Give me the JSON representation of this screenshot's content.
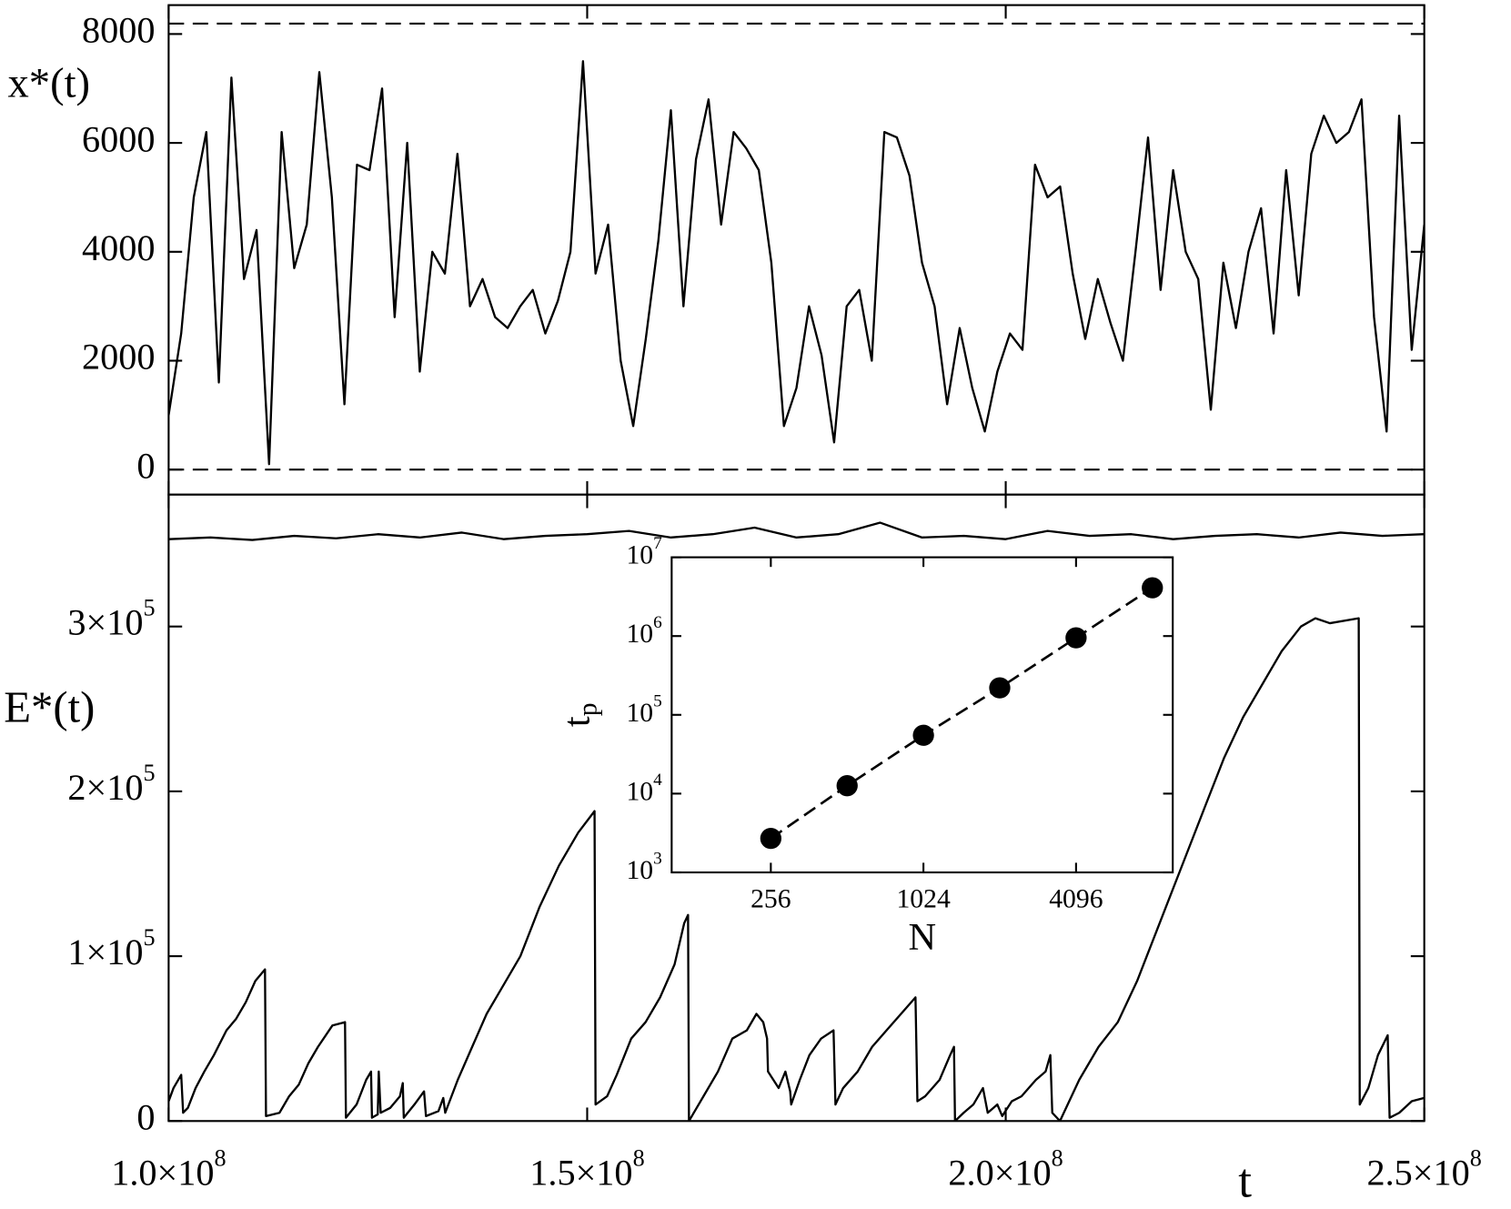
{
  "chart_data": [
    {
      "type": "line",
      "ylabel": "x*(t)",
      "xlim": [
        100000000,
        250000000
      ],
      "ylim": [
        -460,
        8531
      ],
      "yticks": [
        0,
        2000,
        4000,
        6000,
        8000
      ],
      "hlines": [
        0,
        8192
      ],
      "x": [
        100000000.0,
        101500000.0,
        103000000.0,
        104500000.0,
        106000000.0,
        107500000.0,
        109000000.0,
        110500000.0,
        112000000.0,
        113500000.0,
        115000000.0,
        116500000.0,
        118000000.0,
        119500000.0,
        121000000.0,
        122500000.0,
        124000000.0,
        125500000.0,
        127000000.0,
        128500000.0,
        130000000.0,
        131500000.0,
        133000000.0,
        134500000.0,
        136000000.0,
        137500000.0,
        139000000.0,
        140500000.0,
        142000000.0,
        143500000.0,
        145000000.0,
        146500000.0,
        148000000.0,
        149500000.0,
        151000000.0,
        152500000.0,
        154000000.0,
        155500000.0,
        157000000.0,
        158500000.0,
        160000000.0,
        161500000.0,
        163000000.0,
        164500000.0,
        166000000.0,
        167500000.0,
        169000000.0,
        170500000.0,
        172000000.0,
        173500000.0,
        175000000.0,
        176500000.0,
        178000000.0,
        179500000.0,
        181000000.0,
        182500000.0,
        184000000.0,
        185500000.0,
        187000000.0,
        188500000.0,
        190000000.0,
        191500000.0,
        193000000.0,
        194500000.0,
        196000000.0,
        197500000.0,
        199000000.0,
        200500000.0,
        202000000.0,
        203500000.0,
        205000000.0,
        206500000.0,
        208000000.0,
        209500000.0,
        211000000.0,
        212500000.0,
        214000000.0,
        215500000.0,
        217000000.0,
        218500000.0,
        220000000.0,
        221500000.0,
        223000000.0,
        224500000.0,
        226000000.0,
        227500000.0,
        229000000.0,
        230500000.0,
        232000000.0,
        233500000.0,
        235000000.0,
        236500000.0,
        238000000.0,
        239500000.0,
        241000000.0,
        242500000.0,
        244000000.0,
        245500000.0,
        247000000.0,
        248500000.0,
        250000000.0
      ],
      "series": [
        {
          "color": "#000000",
          "values": [
            1000,
            2500,
            5000,
            6200,
            1600,
            7200,
            3500,
            4400,
            100,
            6200,
            3700,
            4500,
            7300,
            5000,
            1200,
            5600,
            5500,
            7000,
            2800,
            6000,
            1800,
            4000,
            3600,
            5800,
            3000,
            3500,
            2800,
            2600,
            3000,
            3300,
            2500,
            3100,
            4000,
            7500,
            3600,
            4500,
            2000,
            800,
            2400,
            4200,
            6600,
            3000,
            5700,
            6800,
            4500,
            6200,
            5900,
            5500,
            3800,
            800,
            1500,
            3000,
            2100,
            500,
            3000,
            3300,
            2000,
            6200,
            6100,
            5400,
            3800,
            3000,
            1200,
            2600,
            1500,
            700,
            1800,
            2500,
            2200,
            5600,
            5000,
            5200,
            3600,
            2400,
            3500,
            2700,
            2000,
            4000,
            6100,
            3300,
            5500,
            4000,
            3500,
            1100,
            3800,
            2600,
            4000,
            4800,
            2500,
            5500,
            3200,
            5800,
            6500,
            6000,
            6200,
            6800,
            2800,
            700,
            6500,
            2200,
            4500
          ]
        }
      ]
    },
    {
      "type": "line",
      "ylabel": "E*(t)",
      "xlabel": "t",
      "xlim": [
        100000000,
        250000000
      ],
      "ylim": [
        0,
        380000
      ],
      "xticks": [
        {
          "value": 100000000,
          "label": "1.0×10",
          "sup": "8"
        },
        {
          "value": 150000000,
          "label": "1.5×10",
          "sup": "8"
        },
        {
          "value": 200000000,
          "label": "2.0×10",
          "sup": "8"
        },
        {
          "value": 250000000,
          "label": "2.5×10",
          "sup": "8"
        }
      ],
      "yticks": [
        0,
        {
          "value": 100000,
          "label": "1×10",
          "sup": "5"
        },
        {
          "value": 200000,
          "label": "2×10",
          "sup": "5"
        },
        {
          "value": 300000,
          "label": "3×10",
          "sup": "5"
        }
      ],
      "x": [
        100000000.0,
        100580000.0,
        101500000.0,
        101730000.0,
        102300000.0,
        103220000.0,
        104260000.0,
        105410000.0,
        106910000.0,
        108060000.0,
        109210000.0,
        110360000.0,
        111510000.0,
        111630000.0,
        113240000.0,
        114390000.0,
        115540000.0,
        116690000.0,
        117840000.0,
        119570000.0,
        121070000.0,
        121180000.0,
        122450000.0,
        123600000.0,
        124180000.0,
        124290000.0,
        124980000.0,
        125100000.0,
        125330000.0,
        126480000.0,
        127630000.0,
        127970000.0,
        128090000.0,
        129360000.0,
        130510000.0,
        130740000.0,
        132230000.0,
        132810000.0,
        133040000.0,
        134540000.0,
        136260000.0,
        137990000.0,
        139720000.0,
        142020000.0,
        144320000.0,
        146630000.0,
        148930000.0,
        150880000.0,
        151000000.0,
        152380000.0,
        153530000.0,
        155260000.0,
        156980000.0,
        158710000.0,
        160440000.0,
        161590000.0,
        162050000.0,
        162160000.0,
        163890000.0,
        165620000.0,
        167340000.0,
        169070000.0,
        170220000.0,
        171030000.0,
        171490000.0,
        171600000.0,
        172870000.0,
        173680000.0,
        174250000.0,
        174370000.0,
        175400000.0,
        176550000.0,
        177940000.0,
        179430000.0,
        179660000.0,
        180580000.0,
        182310000.0,
        184040000.0,
        185760000.0,
        187490000.0,
        189220000.0,
        189450000.0,
        190370000.0,
        192100000.0,
        193360000.0,
        193820000.0,
        193940000.0,
        194970000.0,
        196130000.0,
        197280000.0,
        197850000.0,
        199000000.0,
        199580000.0,
        200730000.0,
        201880000.0,
        203610000.0,
        204760000.0,
        205330000.0,
        205560000.0,
        206480000.0,
        208780000.0,
        211090000.0,
        213390000.0,
        215700000.0,
        216850000.0,
        219150000.0,
        221450000.0,
        223750000.0,
        226060000.0,
        228360000.0,
        230660000.0,
        232960000.0,
        235270000.0,
        236990000.0,
        238720000.0,
        242170000.0,
        242290000.0,
        243320000.0,
        244470000.0,
        245630000.0,
        245860000.0,
        247010000.0,
        248510000.0,
        250000000.0
      ],
      "series": [
        {
          "color": "#000000",
          "values": [
            12000,
            20000,
            28000,
            5000,
            8000,
            20000,
            30000,
            40000,
            55000,
            62000,
            72000,
            85000,
            92000,
            3000,
            5000,
            15000,
            22000,
            35000,
            45000,
            58000,
            60000,
            2000,
            10000,
            25000,
            30000,
            2000,
            4000,
            30000,
            5000,
            8000,
            15000,
            23000,
            2000,
            10000,
            18000,
            3000,
            6000,
            14000,
            5000,
            25000,
            45000,
            65000,
            80000,
            100000,
            130000,
            155000,
            175000,
            188000,
            10000,
            15000,
            28000,
            50000,
            60000,
            75000,
            95000,
            120000,
            125000,
            0,
            15000,
            30000,
            50000,
            55000,
            65000,
            60000,
            50000,
            30000,
            20000,
            30000,
            18000,
            10000,
            25000,
            40000,
            50000,
            55000,
            10000,
            20000,
            30000,
            45000,
            55000,
            65000,
            75000,
            12000,
            15000,
            25000,
            40000,
            45000,
            0,
            5000,
            10000,
            20000,
            5000,
            10000,
            3000,
            12000,
            15000,
            25000,
            30000,
            40000,
            5000,
            0,
            25000,
            45000,
            60000,
            85000,
            100000,
            130000,
            160000,
            190000,
            220000,
            245000,
            265000,
            285000,
            300000,
            305000,
            302000,
            305000,
            10000,
            20000,
            40000,
            52000,
            2000,
            5000,
            12000,
            14000
          ]
        },
        {
          "color": "#000000",
          "x": [
            100000000.0,
            105000000.0,
            110000000.0,
            115000000.0,
            120000000.0,
            125000000.0,
            130000000.0,
            135000000.0,
            140000000.0,
            145000000.0,
            150000000.0,
            155000000.0,
            160000000.0,
            165000000.0,
            170000000.0,
            175000000.0,
            180000000.0,
            185000000.0,
            190000000.0,
            195000000.0,
            200000000.0,
            205000000.0,
            210000000.0,
            215000000.0,
            220000000.0,
            225000000.0,
            230000000.0,
            235000000.0,
            240000000.0,
            245000000.0,
            250000000.0
          ],
          "values": [
            353000,
            354000,
            352500,
            355000,
            353500,
            356000,
            354000,
            357000,
            353000,
            355000,
            356000,
            358000,
            354000,
            356000,
            360000,
            354000,
            356000,
            363000,
            354000,
            355000,
            353000,
            358000,
            355000,
            356000,
            353000,
            355000,
            356000,
            354000,
            357000,
            355000,
            356000
          ]
        }
      ]
    },
    {
      "type": "scatter",
      "xlabel": "N",
      "ylabel": "t",
      "ylabel_sub": "p",
      "xscale": "log",
      "yscale": "log",
      "connect": "dashed",
      "xlim": [
        104,
        9860
      ],
      "ylim": [
        1000,
        10000000
      ],
      "xticks": [
        256,
        1024,
        4096
      ],
      "yticks": [
        {
          "value": 1000,
          "label": "10",
          "sup": "3"
        },
        {
          "value": 10000,
          "label": "10",
          "sup": "4"
        },
        {
          "value": 100000,
          "label": "10",
          "sup": "5"
        },
        {
          "value": 1000000,
          "label": "10",
          "sup": "6"
        },
        {
          "value": 10000000,
          "label": "10",
          "sup": "7"
        }
      ],
      "x": [
        256,
        512,
        1024,
        2048,
        4096,
        8192
      ],
      "series": [
        {
          "color": "#000000",
          "values": [
            2700,
            12600,
            55000,
            220000,
            950000,
            4100000
          ]
        }
      ]
    }
  ]
}
